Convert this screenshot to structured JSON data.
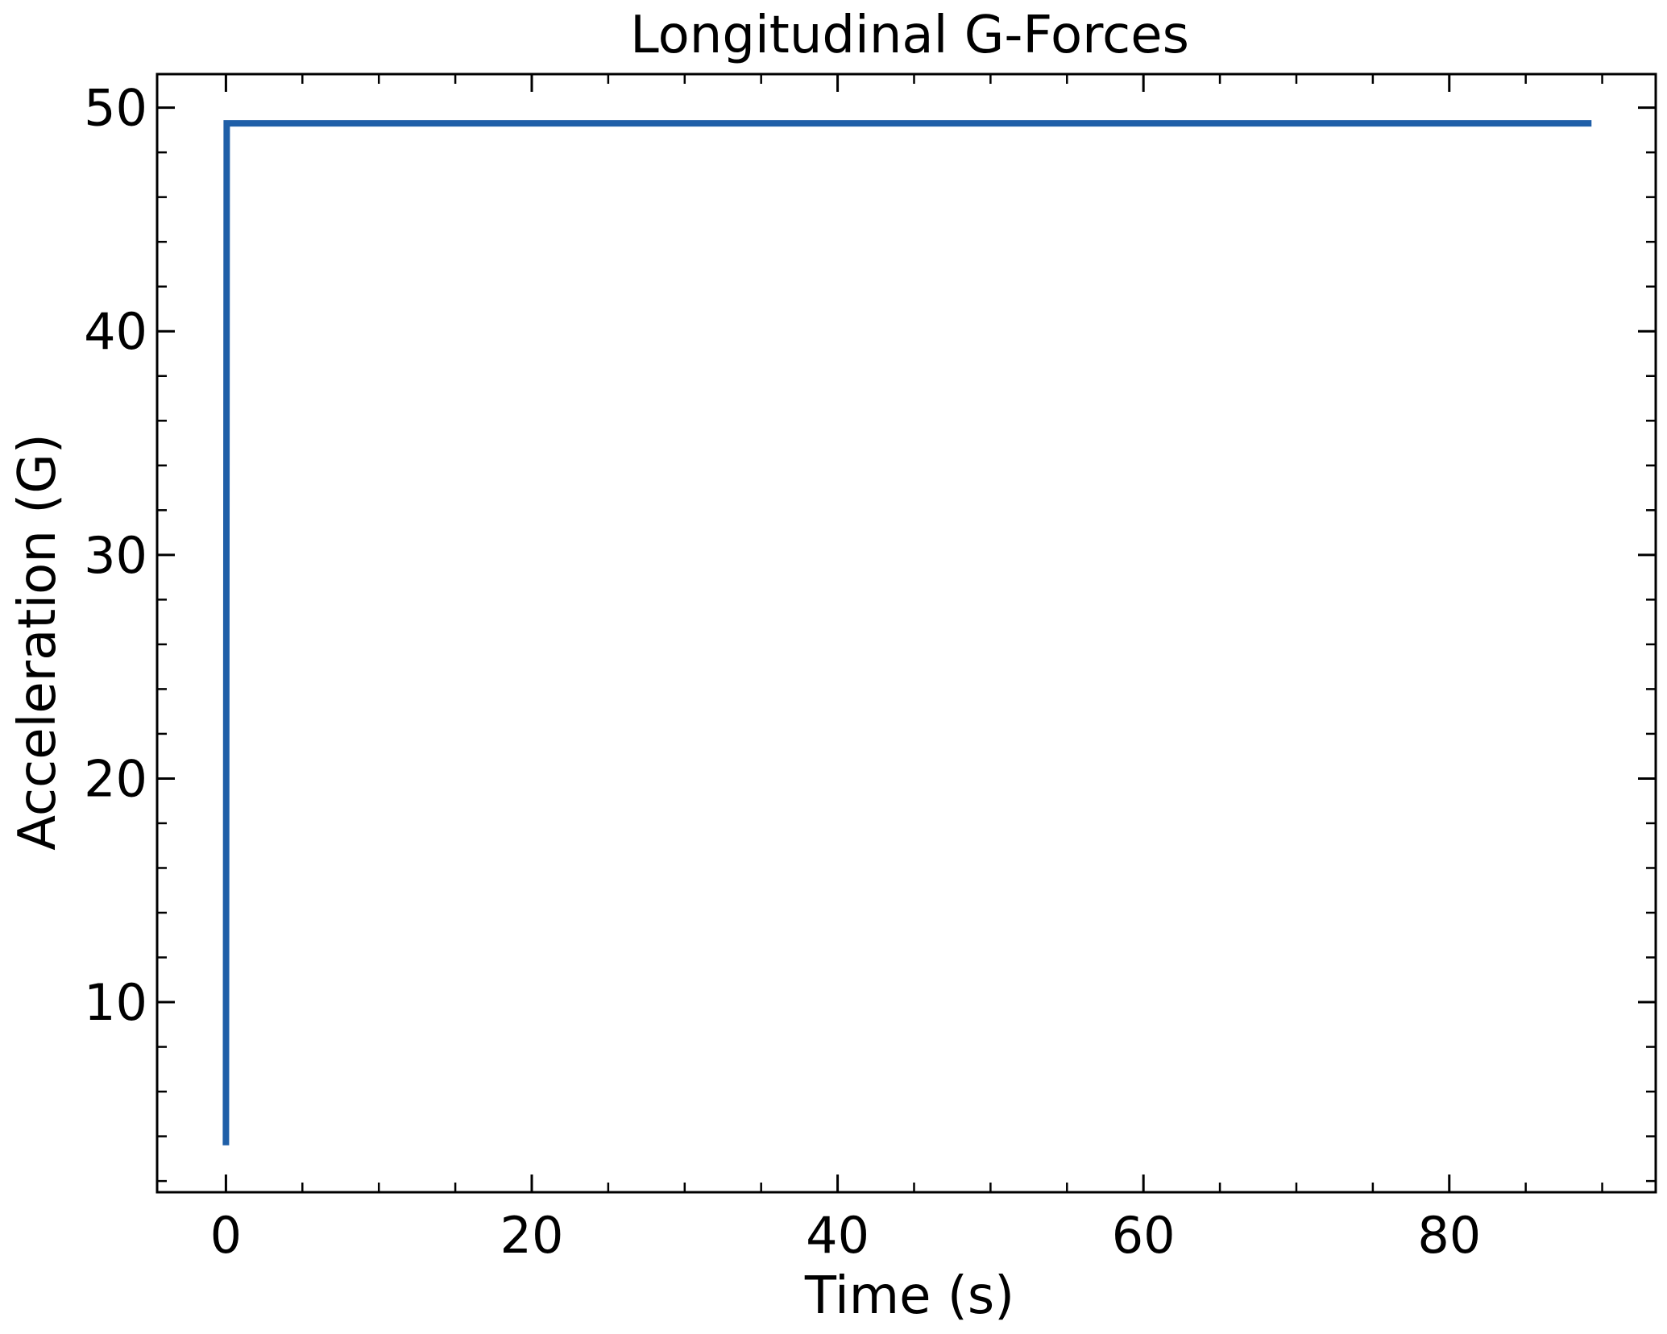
{
  "chart_data": {
    "type": "line",
    "title": "Longitudinal G-Forces",
    "xlabel": "Time (s)",
    "ylabel": "Acceleration (G)",
    "xlim": [
      -4.5,
      93.5
    ],
    "ylim": [
      1.5,
      51.5
    ],
    "x_ticks": [
      0,
      20,
      40,
      60,
      80
    ],
    "x_tick_labels": [
      "0",
      "20",
      "40",
      "60",
      "80"
    ],
    "y_ticks": [
      10,
      20,
      30,
      40,
      50
    ],
    "y_tick_labels": [
      "10",
      "20",
      "30",
      "40",
      "50"
    ],
    "x_minor_step": 5,
    "y_minor_step": 2,
    "grid": false,
    "tick_direction": "in",
    "series": [
      {
        "color": "#1f5fa8",
        "x": [
          0,
          0.05,
          89.3
        ],
        "y": [
          3.6,
          49.3,
          49.3
        ]
      }
    ]
  }
}
